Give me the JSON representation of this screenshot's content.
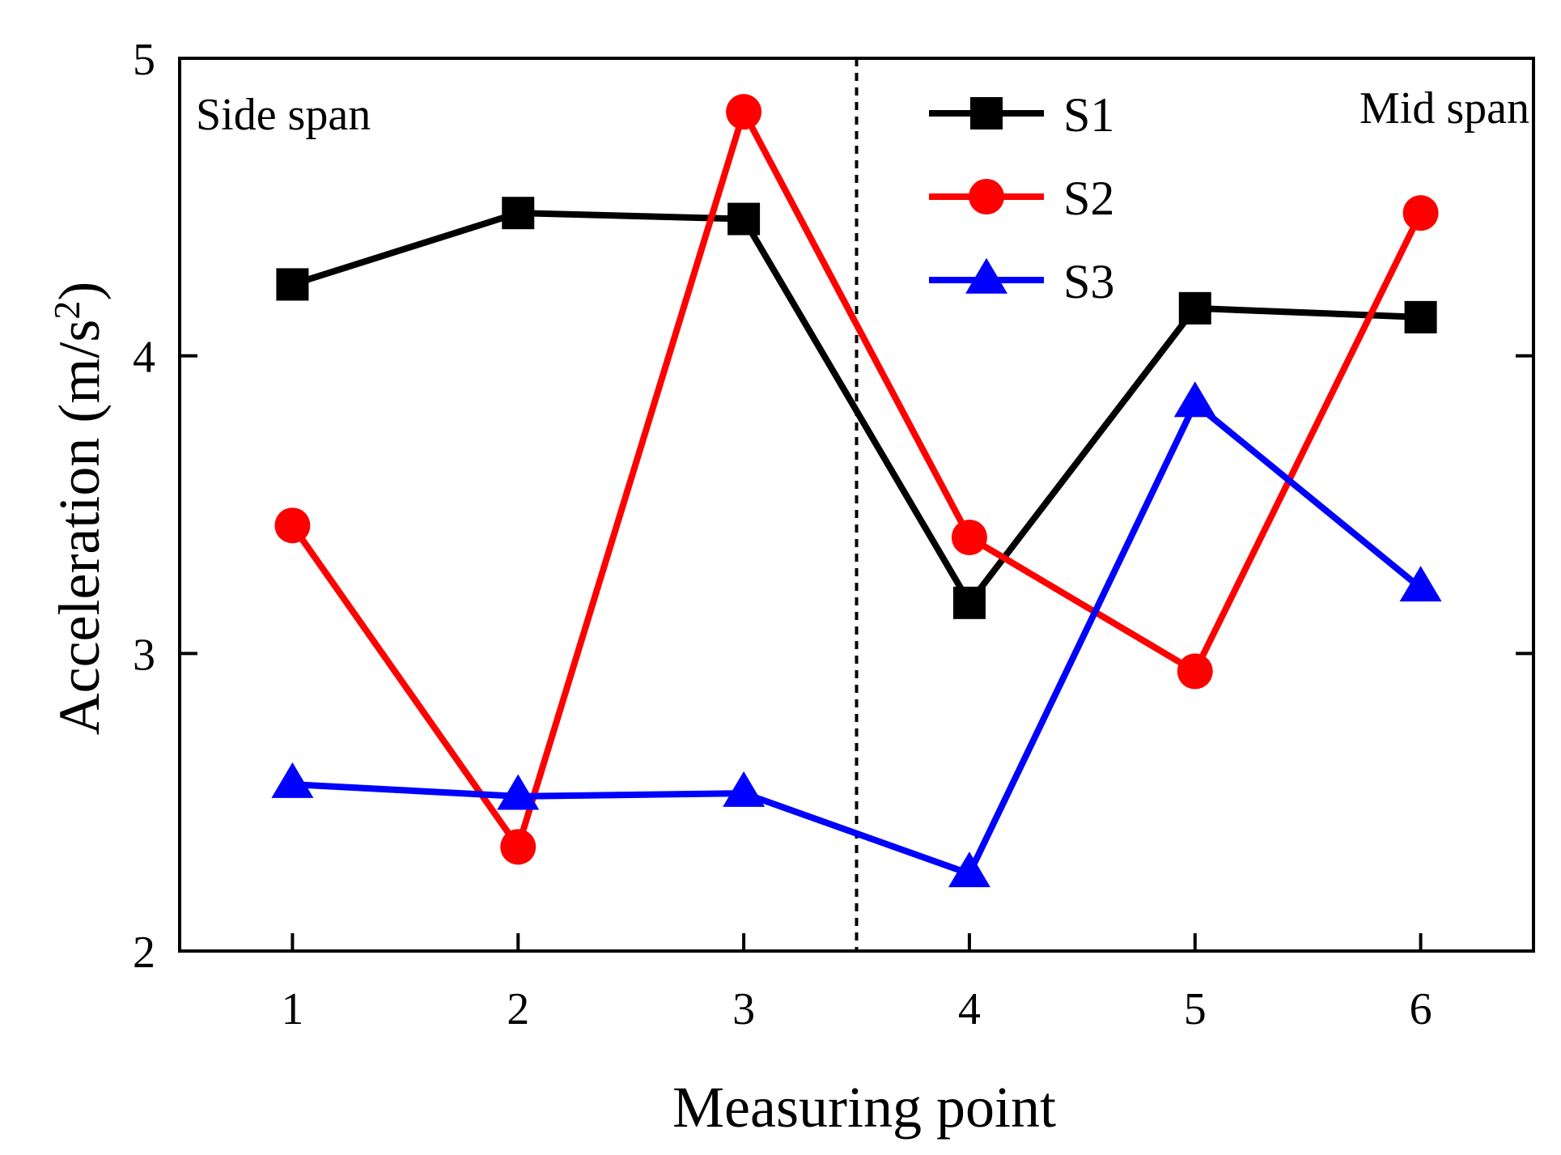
{
  "chart_data": {
    "type": "line",
    "title": "",
    "xlabel": "Measuring point",
    "ylabel": "Acceleration (m/s",
    "ylabel_superscript": "2",
    "ylabel_close": ")",
    "categories": [
      1,
      2,
      3,
      4,
      5,
      6
    ],
    "xlim": [
      0.5,
      6.5
    ],
    "ylim": [
      2,
      5
    ],
    "x_tick_labels": [
      "1",
      "2",
      "3",
      "4",
      "5",
      "6"
    ],
    "y_ticks": [
      2,
      3,
      4,
      5
    ],
    "y_tick_labels": [
      "2",
      "3",
      "4",
      "5"
    ],
    "grid": false,
    "legend_position": "top-center",
    "divider_x": 3.5,
    "annotations": {
      "left": "Side span",
      "right": "Mid span"
    },
    "series": [
      {
        "name": "S1",
        "color": "#000000",
        "marker": "square",
        "values": [
          4.24,
          4.48,
          4.46,
          3.17,
          4.16,
          4.13
        ]
      },
      {
        "name": "S2",
        "color": "#ff0000",
        "marker": "circle",
        "values": [
          3.43,
          2.35,
          4.82,
          3.39,
          2.94,
          4.48
        ]
      },
      {
        "name": "S3",
        "color": "#0000ff",
        "marker": "triangle",
        "values": [
          2.56,
          2.52,
          2.53,
          2.26,
          3.84,
          3.22
        ]
      }
    ]
  }
}
